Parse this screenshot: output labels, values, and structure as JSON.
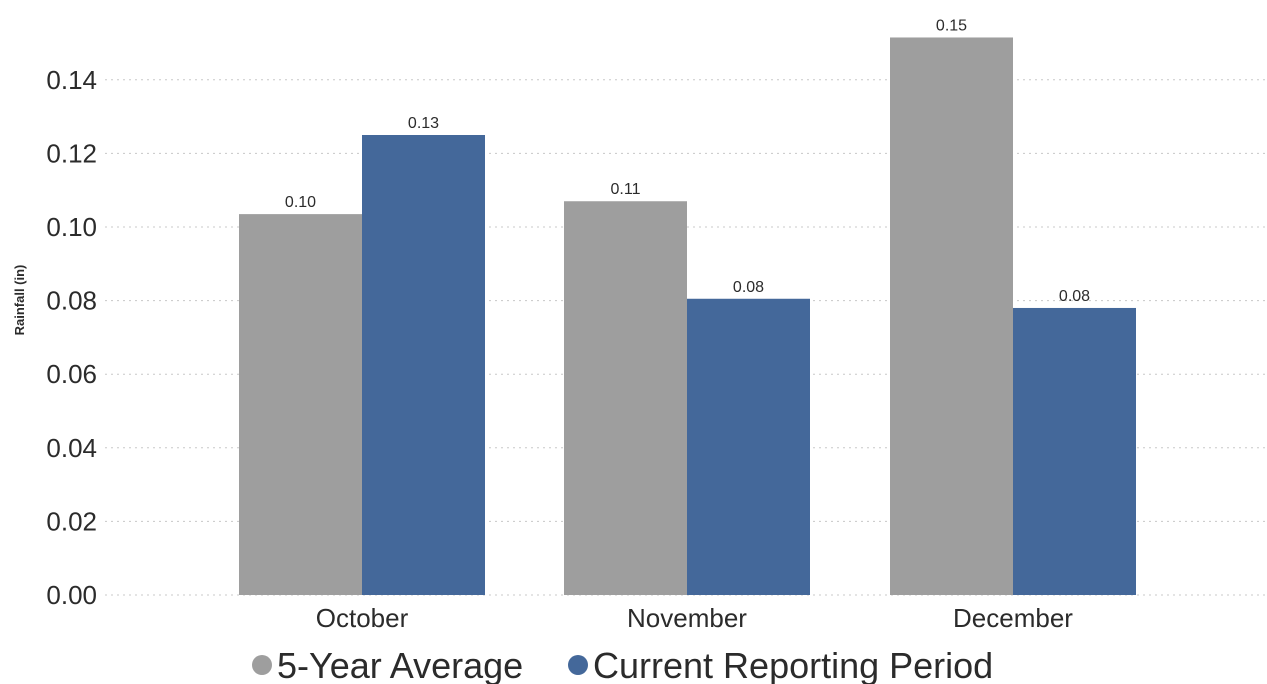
{
  "chart_data": {
    "type": "bar",
    "title": "",
    "xlabel": "",
    "ylabel": "Rainfall (in)",
    "categories": [
      "October",
      "November",
      "December"
    ],
    "series": [
      {
        "name": "5-Year Average",
        "values": [
          0.1035,
          0.107,
          0.1515
        ],
        "labels": [
          "0.10",
          "0.11",
          "0.15"
        ],
        "color": "#9e9e9e"
      },
      {
        "name": "Current Reporting Period",
        "values": [
          0.125,
          0.0805,
          0.078
        ],
        "labels": [
          "0.13",
          "0.08",
          "0.08"
        ],
        "color": "#44689a"
      }
    ],
    "ylim": [
      0,
      0.16
    ],
    "yticks": [
      0,
      0.02,
      0.04,
      0.06,
      0.08,
      0.1,
      0.12,
      0.14
    ],
    "ytick_labels": [
      "0.00",
      "0.02",
      "0.04",
      "0.06",
      "0.08",
      "0.10",
      "0.12",
      "0.14"
    ],
    "grid": true,
    "grid_style": "dotted",
    "legend_position": "bottom"
  }
}
